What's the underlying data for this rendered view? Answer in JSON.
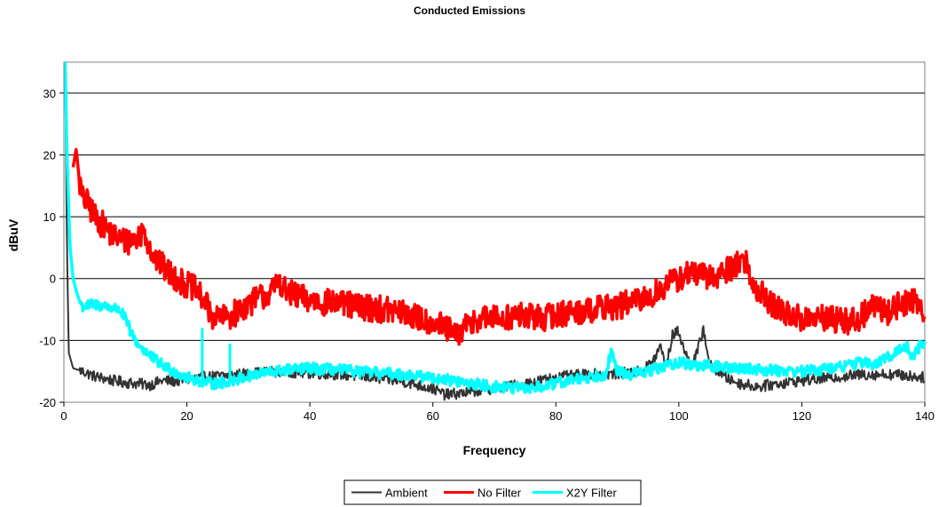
{
  "chart_data": {
    "type": "line",
    "title": "Conducted Emissions",
    "xlabel": "Frequency",
    "ylabel": "dBuV",
    "xlim": [
      0,
      140
    ],
    "ylim": [
      -20,
      35
    ],
    "xticks": [
      0,
      20,
      40,
      60,
      80,
      100,
      120,
      140
    ],
    "yticks": [
      -20,
      -10,
      0,
      10,
      20,
      30
    ],
    "grid": "horizontal",
    "legend_position": "bottom",
    "series": [
      {
        "name": "Ambient",
        "color": "#333333",
        "points": [
          [
            0.2,
            35
          ],
          [
            0.5,
            5
          ],
          [
            0.8,
            -12
          ],
          [
            1.5,
            -14.5
          ],
          [
            3,
            -15
          ],
          [
            5,
            -15.8
          ],
          [
            8,
            -16.5
          ],
          [
            10,
            -16.8
          ],
          [
            12,
            -17
          ],
          [
            14,
            -17.2
          ],
          [
            16,
            -16.5
          ],
          [
            18,
            -16.6
          ],
          [
            20,
            -16.3
          ],
          [
            22,
            -16
          ],
          [
            25,
            -15.8
          ],
          [
            28,
            -15.5
          ],
          [
            30,
            -15.4
          ],
          [
            32,
            -15.2
          ],
          [
            35,
            -15
          ],
          [
            40,
            -15.3
          ],
          [
            45,
            -15.5
          ],
          [
            50,
            -16
          ],
          [
            55,
            -16.6
          ],
          [
            60,
            -17.8
          ],
          [
            62,
            -18.8
          ],
          [
            65,
            -18.5
          ],
          [
            68,
            -18
          ],
          [
            70,
            -17.8
          ],
          [
            72,
            -17.5
          ],
          [
            75,
            -17
          ],
          [
            80,
            -16
          ],
          [
            85,
            -15.5
          ],
          [
            90,
            -15.4
          ],
          [
            94,
            -15
          ],
          [
            96,
            -13
          ],
          [
            97,
            -11
          ],
          [
            98,
            -14
          ],
          [
            99,
            -9
          ],
          [
            100,
            -8.5
          ],
          [
            101,
            -12
          ],
          [
            102,
            -14
          ],
          [
            103,
            -12
          ],
          [
            104,
            -8
          ],
          [
            105,
            -14
          ],
          [
            108,
            -16.2
          ],
          [
            110,
            -17
          ],
          [
            113,
            -17.5
          ],
          [
            116,
            -17
          ],
          [
            120,
            -16.5
          ],
          [
            125,
            -16
          ],
          [
            130,
            -15.5
          ],
          [
            135,
            -15.5
          ],
          [
            138,
            -15.8
          ],
          [
            140,
            -16
          ]
        ]
      },
      {
        "name": "No Filter",
        "color": "#ff0000",
        "points": [
          [
            1.5,
            18
          ],
          [
            2,
            21
          ],
          [
            2.5,
            16
          ],
          [
            3,
            13
          ],
          [
            4,
            12
          ],
          [
            5,
            10
          ],
          [
            6,
            9
          ],
          [
            7,
            8
          ],
          [
            8,
            7
          ],
          [
            10,
            6
          ],
          [
            12,
            6.5
          ],
          [
            13,
            8
          ],
          [
            14,
            5
          ],
          [
            15,
            3
          ],
          [
            17,
            1
          ],
          [
            19,
            -0.5
          ],
          [
            21,
            -1.5
          ],
          [
            22,
            -2.5
          ],
          [
            23,
            -4
          ],
          [
            24,
            -6
          ],
          [
            26,
            -6.5
          ],
          [
            28,
            -5.5
          ],
          [
            30,
            -4
          ],
          [
            32,
            -3
          ],
          [
            34,
            -2
          ],
          [
            35,
            0
          ],
          [
            36,
            -2
          ],
          [
            38,
            -3
          ],
          [
            40,
            -3.5
          ],
          [
            44,
            -4
          ],
          [
            48,
            -4.5
          ],
          [
            52,
            -5
          ],
          [
            55,
            -5.5
          ],
          [
            58,
            -6.5
          ],
          [
            60,
            -7
          ],
          [
            62,
            -8
          ],
          [
            64,
            -9.5
          ],
          [
            65,
            -8
          ],
          [
            67,
            -6.5
          ],
          [
            70,
            -6.5
          ],
          [
            74,
            -6
          ],
          [
            78,
            -6.3
          ],
          [
            82,
            -5.5
          ],
          [
            86,
            -5
          ],
          [
            90,
            -4.5
          ],
          [
            94,
            -3.5
          ],
          [
            96,
            -2.5
          ],
          [
            98,
            -1
          ],
          [
            100,
            0
          ],
          [
            102,
            1
          ],
          [
            105,
            0
          ],
          [
            108,
            1.5
          ],
          [
            110,
            3
          ],
          [
            111,
            2.5
          ],
          [
            112,
            -1
          ],
          [
            114,
            -3
          ],
          [
            116,
            -5
          ],
          [
            118,
            -6
          ],
          [
            120,
            -6.5
          ],
          [
            122,
            -6.5
          ],
          [
            125,
            -6.5
          ],
          [
            128,
            -7
          ],
          [
            130,
            -6
          ],
          [
            132,
            -4
          ],
          [
            134,
            -5.5
          ],
          [
            136,
            -4
          ],
          [
            138,
            -3.5
          ],
          [
            140,
            -5
          ]
        ]
      },
      {
        "name": "X2Y Filter",
        "color": "#00ffff",
        "points": [
          [
            0.2,
            35
          ],
          [
            0.5,
            20
          ],
          [
            1,
            5
          ],
          [
            1.5,
            0
          ],
          [
            2,
            -2
          ],
          [
            2.5,
            -3.5
          ],
          [
            3,
            -4.5
          ],
          [
            5,
            -4.2
          ],
          [
            7,
            -4.5
          ],
          [
            9,
            -5
          ],
          [
            10,
            -6.5
          ],
          [
            11,
            -9
          ],
          [
            12,
            -10.5
          ],
          [
            14,
            -12.5
          ],
          [
            16,
            -14
          ],
          [
            18,
            -15
          ],
          [
            20,
            -16
          ],
          [
            22,
            -16.5
          ],
          [
            24,
            -17
          ],
          [
            26,
            -16.8
          ],
          [
            28,
            -16.3
          ],
          [
            30,
            -15.8
          ],
          [
            33,
            -15.2
          ],
          [
            36,
            -14.8
          ],
          [
            40,
            -14.5
          ],
          [
            45,
            -14.8
          ],
          [
            50,
            -15.2
          ],
          [
            55,
            -15.5
          ],
          [
            60,
            -16
          ],
          [
            65,
            -16.8
          ],
          [
            70,
            -17.5
          ],
          [
            74,
            -17.8
          ],
          [
            78,
            -17.5
          ],
          [
            82,
            -16.5
          ],
          [
            86,
            -15.8
          ],
          [
            88,
            -15.5
          ],
          [
            89,
            -12
          ],
          [
            90,
            -15
          ],
          [
            92,
            -15.5
          ],
          [
            95,
            -15
          ],
          [
            98,
            -14
          ],
          [
            100,
            -13.5
          ],
          [
            102,
            -14
          ],
          [
            105,
            -14.2
          ],
          [
            110,
            -14.5
          ],
          [
            115,
            -14.8
          ],
          [
            120,
            -15
          ],
          [
            125,
            -14.5
          ],
          [
            130,
            -13.5
          ],
          [
            132,
            -14
          ],
          [
            135,
            -12
          ],
          [
            137,
            -11
          ],
          [
            138,
            -12.5
          ],
          [
            140,
            -10
          ]
        ]
      }
    ],
    "annotations": [
      {
        "series": "X2Y Filter",
        "x": 22.5,
        "y": -8
      },
      {
        "series": "X2Y Filter",
        "x": 27,
        "y": -10.5
      }
    ]
  }
}
